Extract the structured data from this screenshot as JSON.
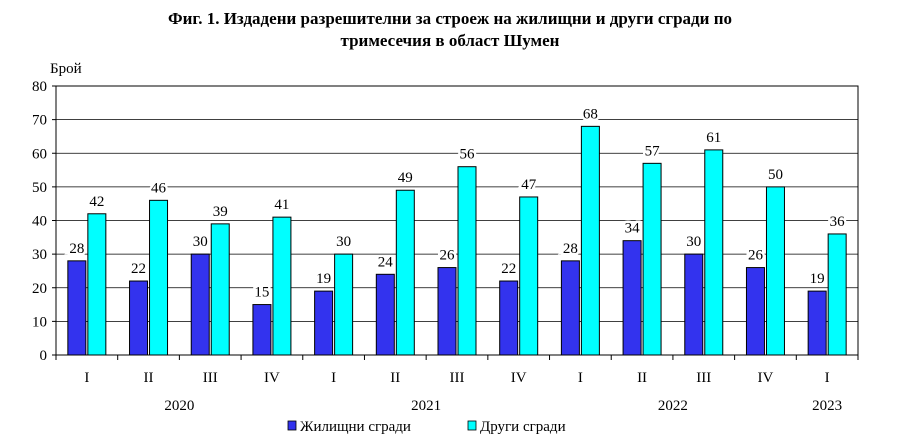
{
  "chart_data": {
    "type": "bar",
    "title": "Фиг. 1. Издадени разрешителни за строеж на жилищни и други сгради по тримесечия в област Шумен",
    "title_lines": [
      "Фиг. 1. Издадени разрешителни за строеж на жилищни и други сгради по",
      "тримесечия в област Шумен"
    ],
    "ylabel": "Брой",
    "ylim": [
      0,
      80
    ],
    "yticks": [
      0,
      10,
      20,
      30,
      40,
      50,
      60,
      70,
      80
    ],
    "categories": [
      "I",
      "II",
      "III",
      "IV",
      "I",
      "II",
      "III",
      "IV",
      "I",
      "II",
      "III",
      "IV",
      "I"
    ],
    "years": [
      {
        "label": "2020",
        "start": 0,
        "end": 3
      },
      {
        "label": "2021",
        "start": 4,
        "end": 7
      },
      {
        "label": "2022",
        "start": 8,
        "end": 11
      },
      {
        "label": "2023",
        "start": 12,
        "end": 12
      }
    ],
    "series": [
      {
        "name": "Жилищни сгради",
        "color": "#3333ee",
        "values": [
          28,
          22,
          30,
          15,
          19,
          24,
          26,
          22,
          28,
          34,
          30,
          26,
          19
        ]
      },
      {
        "name": "Други сгради",
        "color": "#00ffff",
        "values": [
          42,
          46,
          39,
          41,
          30,
          49,
          56,
          47,
          68,
          57,
          61,
          50,
          36
        ]
      }
    ],
    "grid": true,
    "legend_position": "bottom"
  }
}
